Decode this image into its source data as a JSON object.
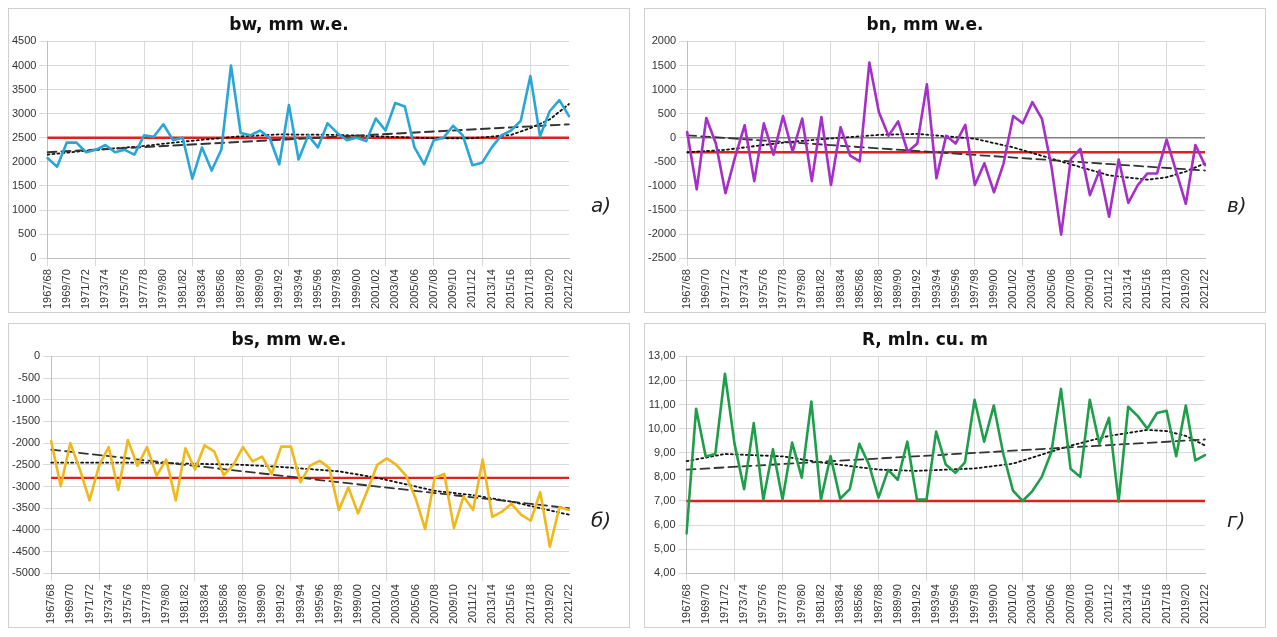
{
  "chart_data": [
    {
      "type": "line",
      "title": "bw, mm w.e.",
      "annotations": [
        "а)"
      ],
      "grid": true,
      "legend": false,
      "marker": "none",
      "ylim": [
        0,
        4500
      ],
      "yticks": [
        0,
        500,
        1000,
        1500,
        2000,
        2500,
        3000,
        3500,
        4000,
        4500
      ],
      "categories": [
        "1967/68",
        null,
        "1969/70",
        null,
        "1971/72",
        null,
        "1973/74",
        null,
        "1975/76",
        null,
        "1977/78",
        null,
        "1979/80",
        null,
        "1981/82",
        null,
        "1983/84",
        null,
        "1985/86",
        null,
        "1987/88",
        null,
        "1989/90",
        null,
        "1991/92",
        null,
        "1993/94",
        null,
        "1995/96",
        null,
        "1997/98",
        null,
        "1999/00",
        null,
        "2001/02",
        null,
        "2003/04",
        null,
        "2005/06",
        null,
        "2007/08",
        null,
        "2009/10",
        null,
        "2011/12",
        null,
        "2013/14",
        null,
        "2015/16",
        null,
        "2017/18",
        null,
        "2019/20",
        null,
        "2021/22"
      ],
      "ref_lines": [
        {
          "axis": "y",
          "value": 2500,
          "color": "#e0201c"
        }
      ],
      "series": [
        {
          "color": "#29a6d8",
          "line_style": "solid",
          "values": [
            2080,
            1900,
            2400,
            2400,
            2200,
            2250,
            2350,
            2200,
            2250,
            2150,
            2550,
            2520,
            2780,
            2450,
            2500,
            1650,
            2300,
            1820,
            2250,
            4000,
            2600,
            2550,
            2650,
            2500,
            1950,
            3180,
            2050,
            2550,
            2300,
            2800,
            2600,
            2450,
            2500,
            2430,
            2900,
            2650,
            3220,
            3150,
            2300,
            1950,
            2450,
            2500,
            2750,
            2550,
            1930,
            1980,
            2300,
            2550,
            2650,
            2850,
            3780,
            2530,
            3050,
            3280,
            2950
          ]
        },
        {
          "color": "#333333",
          "line_style": "dashed",
          "x": [
            "1967/68",
            "2021/22"
          ],
          "values": [
            2200,
            2780
          ]
        },
        {
          "color": "#111111",
          "line_style": "dotted",
          "x": [
            "1967/68",
            "1971/72",
            "1977/78",
            "1981/82",
            "1987/88",
            "1991/92",
            "1997/98",
            "2001/02",
            "2007/08",
            "2011/12",
            "2015/16",
            "2017/18",
            "2019/20",
            "2021/22"
          ],
          "values": [
            2150,
            2230,
            2330,
            2420,
            2530,
            2570,
            2560,
            2530,
            2490,
            2490,
            2560,
            2700,
            2880,
            3200
          ]
        }
      ]
    },
    {
      "type": "line",
      "title": "bn, mm w.e.",
      "annotations": [
        "в)"
      ],
      "grid": true,
      "legend": false,
      "marker": "none",
      "ylim": [
        -2500,
        2000
      ],
      "yticks": [
        -2500,
        -2000,
        -1500,
        -1000,
        -500,
        0,
        500,
        1000,
        1500,
        2000
      ],
      "categories": [
        "1967/68",
        null,
        "1969/70",
        null,
        "1971/72",
        null,
        "1973/74",
        null,
        "1975/76",
        null,
        "1977/78",
        null,
        "1979/80",
        null,
        "1981/82",
        null,
        "1983/84",
        null,
        "1985/86",
        null,
        "1987/88",
        null,
        "1989/90",
        null,
        "1991/92",
        null,
        "1993/94",
        null,
        "1995/96",
        null,
        "1997/98",
        null,
        "1999/00",
        null,
        "2001/02",
        null,
        "2003/04",
        null,
        "2005/06",
        null,
        "2007/08",
        null,
        "2009/10",
        null,
        "2011/12",
        null,
        "2013/14",
        null,
        "2015/16",
        null,
        "2017/18",
        null,
        "2019/20",
        null,
        "2021/22"
      ],
      "ref_lines": [
        {
          "axis": "y",
          "value": 0,
          "color": "#808080"
        },
        {
          "axis": "y",
          "value": -300,
          "color": "#e0201c"
        }
      ],
      "series": [
        {
          "color": "#a52fc8",
          "line_style": "solid",
          "values": [
            120,
            -1070,
            410,
            -120,
            -1150,
            -400,
            260,
            -900,
            300,
            -350,
            450,
            -290,
            400,
            -900,
            430,
            -980,
            220,
            -370,
            -490,
            1560,
            530,
            40,
            340,
            -290,
            -120,
            1110,
            -840,
            40,
            -120,
            270,
            -980,
            -530,
            -1130,
            -530,
            450,
            300,
            740,
            390,
            -610,
            -2010,
            -450,
            -230,
            -1190,
            -680,
            -1640,
            -450,
            -1350,
            -980,
            -740,
            -740,
            -40,
            -700,
            -1370,
            -150,
            -570
          ]
        },
        {
          "color": "#333333",
          "line_style": "dashed",
          "x": [
            "1967/68",
            "2021/22"
          ],
          "values": [
            50,
            -680
          ]
        },
        {
          "color": "#111111",
          "line_style": "dotted",
          "x": [
            "1967/68",
            "1971/72",
            "1977/78",
            "1981/82",
            "1987/88",
            "1991/92",
            "1997/98",
            "2001/02",
            "2007/08",
            "2011/12",
            "2015/16",
            "2017/18",
            "2019/20",
            "2021/22"
          ],
          "values": [
            -300,
            -250,
            -100,
            -30,
            60,
            80,
            -20,
            -200,
            -550,
            -780,
            -870,
            -820,
            -700,
            -530
          ]
        }
      ]
    },
    {
      "type": "line",
      "title": "bs, mm w.e.",
      "annotations": [
        "б)"
      ],
      "grid": true,
      "legend": false,
      "marker": "none",
      "ylim": [
        -5000,
        0
      ],
      "yticks": [
        -5000,
        -4500,
        -4000,
        -3500,
        -3000,
        -2500,
        -2000,
        -1500,
        -1000,
        -500,
        0
      ],
      "categories": [
        "1967/68",
        null,
        "1969/70",
        null,
        "1971/72",
        null,
        "1973/74",
        null,
        "1975/76",
        null,
        "1977/78",
        null,
        "1979/80",
        null,
        "1981/82",
        null,
        "1983/84",
        null,
        "1985/86",
        null,
        "1987/88",
        null,
        "1989/90",
        null,
        "1991/92",
        null,
        "1993/94",
        null,
        "1995/96",
        null,
        "1997/98",
        null,
        "1999/00",
        null,
        "2001/02",
        null,
        "2003/04",
        null,
        "2005/06",
        null,
        "2007/08",
        null,
        "2009/10",
        null,
        "2011/12",
        null,
        "2013/14",
        null,
        "2015/16",
        null,
        "2017/18",
        null,
        "2019/20",
        null,
        "2021/22"
      ],
      "ref_lines": [
        {
          "axis": "y",
          "value": -2800,
          "color": "#e0201c"
        }
      ],
      "series": [
        {
          "color": "#f0b81a",
          "line_style": "solid",
          "values": [
            -1950,
            -2990,
            -2000,
            -2610,
            -3320,
            -2520,
            -2090,
            -3080,
            -1930,
            -2520,
            -2090,
            -2750,
            -2380,
            -3320,
            -2120,
            -2610,
            -2050,
            -2190,
            -2740,
            -2500,
            -2090,
            -2420,
            -2310,
            -2710,
            -2080,
            -2080,
            -2900,
            -2520,
            -2410,
            -2570,
            -3540,
            -3020,
            -3620,
            -3080,
            -2500,
            -2350,
            -2500,
            -2750,
            -3270,
            -3980,
            -2800,
            -2710,
            -3960,
            -3230,
            -3540,
            -2380,
            -3700,
            -3580,
            -3400,
            -3650,
            -3790,
            -3130,
            -4390,
            -3480,
            -3540
          ]
        },
        {
          "color": "#333333",
          "line_style": "dashed",
          "x": [
            "1967/68",
            "2021/22"
          ],
          "values": [
            -2150,
            -3500
          ]
        },
        {
          "color": "#111111",
          "line_style": "dotted",
          "x": [
            "1967/68",
            "1971/72",
            "1977/78",
            "1981/82",
            "1987/88",
            "1991/92",
            "1997/98",
            "2001/02",
            "2007/08",
            "2011/12",
            "2015/16",
            "2017/18",
            "2019/20",
            "2021/22"
          ],
          "values": [
            -2450,
            -2450,
            -2450,
            -2470,
            -2500,
            -2550,
            -2650,
            -2800,
            -3100,
            -3200,
            -3350,
            -3450,
            -3550,
            -3650
          ]
        }
      ]
    },
    {
      "type": "line",
      "title": "R, mln. cu. m",
      "annotations": [
        "г)"
      ],
      "grid": true,
      "legend": false,
      "marker": "none",
      "ylim": [
        4,
        13
      ],
      "yticks": [
        {
          "value": 4,
          "label": "4,00"
        },
        {
          "value": 5,
          "label": "5,00"
        },
        {
          "value": 6,
          "label": "6,00"
        },
        {
          "value": 7,
          "label": "7,00"
        },
        {
          "value": 8,
          "label": "8,00"
        },
        {
          "value": 9,
          "label": "9,00"
        },
        {
          "value": 10,
          "label": "10,00"
        },
        {
          "value": 11,
          "label": "11,00"
        },
        {
          "value": 12,
          "label": "12,00"
        },
        {
          "value": 13,
          "label": "13,00"
        }
      ],
      "categories": [
        "1967/68",
        null,
        "1969/70",
        null,
        "1971/72",
        null,
        "1973/74",
        null,
        "1975/76",
        null,
        "1977/78",
        null,
        "1979/80",
        null,
        "1981/82",
        null,
        "1983/84",
        null,
        "1985/86",
        null,
        "1987/88",
        null,
        "1989/90",
        null,
        "1991/92",
        null,
        "1993/94",
        null,
        "1995/96",
        null,
        "1997/98",
        null,
        "1999/00",
        null,
        "2001/02",
        null,
        "2003/04",
        null,
        "2005/06",
        null,
        "2007/08",
        null,
        "2009/10",
        null,
        "2011/12",
        null,
        "2013/14",
        null,
        "2015/16",
        null,
        "2017/18",
        null,
        "2019/20",
        null,
        "2021/22"
      ],
      "ref_lines": [
        {
          "axis": "y",
          "value": 7,
          "color": "#e0201c"
        }
      ],
      "series": [
        {
          "color": "#1f9e4a",
          "line_style": "solid",
          "values": [
            5.65,
            10.83,
            8.85,
            8.95,
            12.28,
            9.37,
            7.49,
            10.23,
            7.06,
            9.15,
            7.06,
            9.42,
            7.97,
            11.13,
            7.06,
            8.86,
            7.09,
            7.49,
            9.37,
            8.51,
            7.14,
            8.29,
            7.88,
            9.46,
            7.06,
            7.06,
            9.88,
            8.51,
            8.17,
            8.6,
            11.2,
            9.46,
            10.96,
            8.94,
            7.43,
            7.0,
            7.4,
            8.0,
            9.03,
            11.65,
            8.34,
            8.0,
            11.2,
            9.37,
            10.45,
            6.97,
            10.91,
            10.52,
            10.0,
            10.65,
            10.74,
            8.86,
            10.96,
            8.68,
            8.9
          ]
        },
        {
          "color": "#333333",
          "line_style": "dashed",
          "x": [
            "1967/68",
            "2021/22"
          ],
          "values": [
            8.3,
            9.55
          ]
        },
        {
          "color": "#111111",
          "line_style": "dotted",
          "x": [
            "1967/68",
            "1971/72",
            "1977/78",
            "1981/82",
            "1987/88",
            "1991/92",
            "1997/98",
            "2001/02",
            "2007/08",
            "2011/12",
            "2015/16",
            "2017/18",
            "2019/20",
            "2021/22"
          ],
          "values": [
            8.65,
            8.95,
            8.85,
            8.6,
            8.3,
            8.25,
            8.35,
            8.55,
            9.3,
            9.7,
            9.95,
            9.9,
            9.7,
            9.3
          ]
        }
      ]
    }
  ]
}
